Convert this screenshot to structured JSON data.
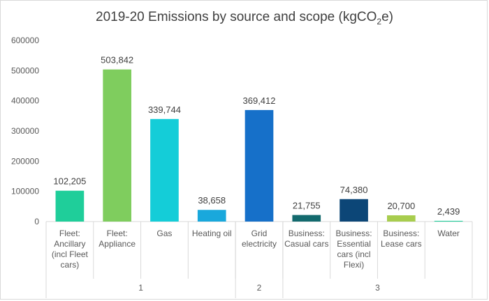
{
  "chart_data": {
    "type": "bar",
    "title": "2019-20 Emissions by source and scope (kgCO",
    "title_sub": "2",
    "title_suffix": "e)",
    "categories": [
      "Fleet: Ancillary (incl Fleet cars)",
      "Fleet: Appliance",
      "Gas",
      "Heating oil",
      "Grid electricity",
      "Business: Casual cars",
      "Business: Essential cars (incl Flexi)",
      "Business: Lease cars",
      "Water"
    ],
    "category_label_lines": [
      [
        "Fleet:",
        "Ancillary",
        "(incl Fleet",
        "cars)"
      ],
      [
        "Fleet:",
        "Appliance"
      ],
      [
        "Gas"
      ],
      [
        "Heating oil"
      ],
      [
        "Grid",
        "electricity"
      ],
      [
        "Business:",
        "Casual cars"
      ],
      [
        "Business:",
        "Essential",
        "cars (incl",
        "Flexi)"
      ],
      [
        "Business:",
        "Lease cars"
      ],
      [
        "Water"
      ]
    ],
    "values": [
      102205,
      503842,
      339744,
      38658,
      369412,
      21755,
      74380,
      20700,
      2439
    ],
    "data_labels": [
      "102,205",
      "503,842",
      "339,744",
      "38,658",
      "369,412",
      "21,755",
      "74,380",
      "20,700",
      "2,439"
    ],
    "colors": [
      "#1fce9a",
      "#7fcd5e",
      "#14cdd8",
      "#19a8dc",
      "#1670c9",
      "#136a6e",
      "#0c4677",
      "#a8cd4e",
      "#1fce9a"
    ],
    "groups": [
      {
        "label": "1",
        "count": 4
      },
      {
        "label": "2",
        "count": 1
      },
      {
        "label": "3",
        "count": 4
      }
    ],
    "y_ticks": [
      "0",
      "100000",
      "200000",
      "300000",
      "400000",
      "500000",
      "600000"
    ],
    "ylim": [
      0,
      600000
    ],
    "grid": false,
    "legend": "none"
  }
}
